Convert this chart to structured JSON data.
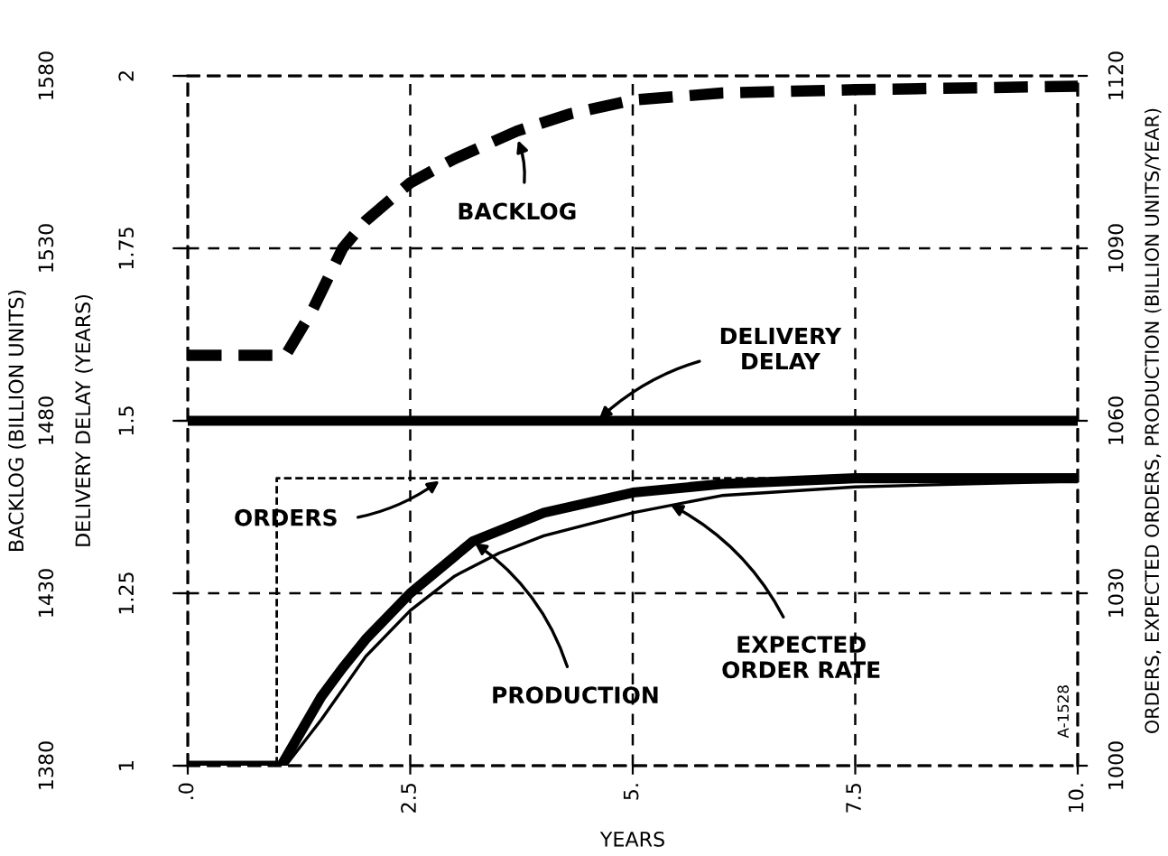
{
  "chart_data": {
    "type": "line",
    "xlabel": "YEARS",
    "ylabel": "BACKLOG (BILLION UNITS)",
    "y3label": "DELIVERY DELAY (YEARS)",
    "y2label": "ORDERS, EXPECTED ORDERS, PRODUCTION (BILLION UNITS/YEAR)",
    "xlim": [
      0,
      10
    ],
    "xticks": [
      {
        "value": 0,
        "label": ".0"
      },
      2.5,
      {
        "value": 5,
        "label": "5."
      },
      7.5,
      {
        "value": 10,
        "label": "10."
      }
    ],
    "ylim": [
      1380,
      1580
    ],
    "yticks": [
      1380,
      1430,
      1480,
      1530,
      1580
    ],
    "y3lim": [
      1,
      2
    ],
    "y3ticks": [
      1,
      1.25,
      1.5,
      1.75,
      2
    ],
    "y2lim": [
      1000,
      1120
    ],
    "y2ticks": [
      1000,
      1030,
      1060,
      1090,
      1120
    ],
    "grid": true,
    "line_style": "solid",
    "series": [
      {
        "color": "#000000",
        "line_style": "dashed",
        "x": [
          0,
          1.1,
          1.4,
          1.74,
          2.0,
          2.5,
          3.0,
          3.7,
          4.3,
          5,
          6,
          7.5,
          10
        ],
        "values": [
          1499,
          1499,
          1512,
          1530,
          1538,
          1549,
          1556,
          1564,
          1569,
          1573,
          1575,
          1576,
          1577
        ]
      },
      {
        "color": "#000000",
        "axis": "y3",
        "x": [
          0,
          10
        ],
        "values": [
          1.5,
          1.5
        ]
      },
      {
        "color": "#000000",
        "axis": "y2",
        "line_style": "dashed",
        "x": [
          0,
          1,
          1,
          10
        ],
        "values": [
          1000,
          1000,
          1050,
          1050
        ]
      },
      {
        "color": "#000000",
        "axis": "y2",
        "x": [
          0,
          1.05,
          1.5,
          1.74,
          2.0,
          2.5,
          3.2,
          4,
          5,
          6,
          7.5,
          10
        ],
        "values": [
          1000,
          1000,
          1012,
          1017,
          1022,
          1030,
          1039,
          1044,
          1047.5,
          1049,
          1050,
          1050
        ]
      },
      {
        "color": "#000000",
        "axis": "y2",
        "x": [
          0,
          1.1,
          1.5,
          2,
          2.5,
          3,
          3.5,
          4,
          5,
          6,
          7.5,
          10
        ],
        "values": [
          1000,
          1000,
          1008,
          1019,
          1027,
          1033,
          1037,
          1040,
          1044,
          1047,
          1048.5,
          1049.5
        ]
      }
    ],
    "annotations": [
      {
        "text": "BACKLOG",
        "x": 3.7,
        "y": 1562
      },
      {
        "text": "DELIVERY\nDELAY",
        "x": 4.6,
        "y": 1480
      },
      {
        "text": "ORDERS",
        "x": 2.85,
        "y": 1463
      },
      {
        "text": "PRODUCTION",
        "x": 3.2,
        "y": 1445
      },
      {
        "text": "EXPECTED\nORDER RATE",
        "x": 5.4,
        "y": 1456
      },
      "A-1528"
    ]
  }
}
